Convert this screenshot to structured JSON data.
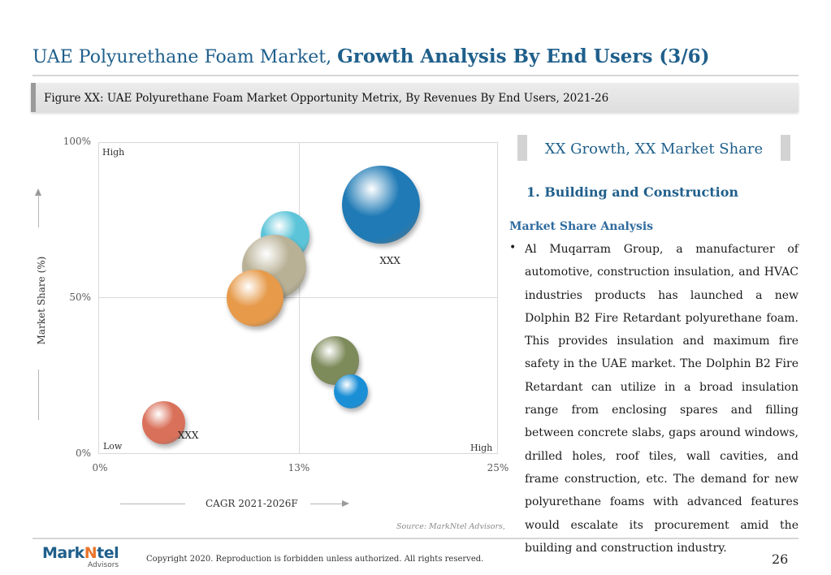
{
  "header": {
    "title_regular": "UAE Polyurethane Foam Market,",
    "title_bold": "Growth Analysis By End Users (3/6)"
  },
  "figure": {
    "caption": "Figure XX: UAE Polyurethane Foam Market Opportunity Metrix, By Revenues By End Users, 2021-26"
  },
  "chart_data": {
    "type": "scatter",
    "title": "",
    "xlabel": "CAGR 2021-2026F",
    "ylabel": "Market Share (%)",
    "xlim": [
      0,
      25
    ],
    "ylim": [
      0,
      100
    ],
    "x_ticks": [
      "0%",
      "13%",
      "25%"
    ],
    "y_ticks": [
      "0%",
      "50%",
      "100%"
    ],
    "grid": true,
    "corner_labels": {
      "top_left": "High",
      "bottom_left": "Low",
      "bottom_right": "High"
    },
    "points": [
      {
        "x": 17.7,
        "y": 80,
        "size": 1.0,
        "color": "#1f7ab5",
        "label": "XXX"
      },
      {
        "x": 11.7,
        "y": 70,
        "size": 0.62,
        "color": "#5bc4d8",
        "label": ""
      },
      {
        "x": 11.0,
        "y": 60,
        "size": 0.83,
        "color": "#b9b196",
        "label": ""
      },
      {
        "x": 9.8,
        "y": 50,
        "size": 0.73,
        "color": "#e69a4a",
        "label": ""
      },
      {
        "x": 14.8,
        "y": 30,
        "size": 0.62,
        "color": "#7d8a5a",
        "label": ""
      },
      {
        "x": 15.8,
        "y": 20,
        "size": 0.44,
        "color": "#1b8fd6",
        "label": ""
      },
      {
        "x": 4.1,
        "y": 10,
        "size": 0.55,
        "color": "#d9705a",
        "label": "XXX"
      }
    ]
  },
  "source": "Source: MarkNtel Advisors,",
  "panel": {
    "heading": "XX Growth, XX Market Share",
    "section_title": "1. Building and Construction",
    "subhead": "Market Share Analysis",
    "bullet": "•",
    "body": "Al Muqarram Group, a manufacturer of automotive, construction insulation, and HVAC industries products has launched a new Dolphin B2 Fire Retardant polyurethane foam. This provides insulation and maximum fire safety in the UAE market. The Dolphin B2 Fire Retardant can utilize in a broad insulation range from enclosing spares and filling between concrete slabs, gaps around windows, drilled holes, roof tiles, wall cavities, and frame construction, etc. The demand for new polyurethane foams with advanced features would escalate its procurement amid the building and construction industry."
  },
  "footer": {
    "logo_part1": "Mark",
    "logo_part2": "N",
    "logo_part3": "tel",
    "logo_sub": "Advisors",
    "copyright": "Copyright 2020. Reproduction is forbidden unless authorized. All rights reserved.",
    "page_number": "26"
  }
}
